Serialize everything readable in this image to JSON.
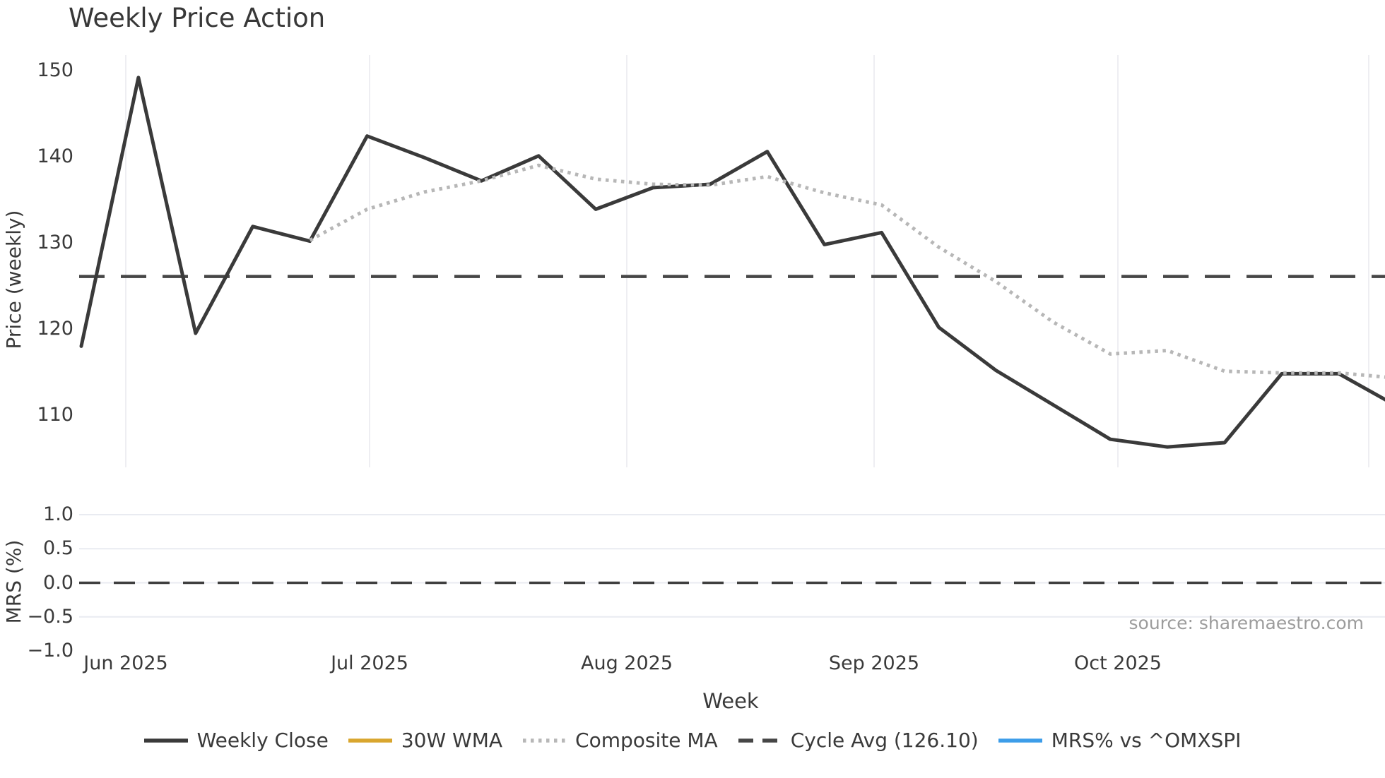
{
  "title": "Weekly Price Action",
  "xlabel": "Week",
  "source": "source: sharemaestro.com",
  "main_chart": {
    "ylabel": "Price (weekly)",
    "y_tick_labels": [
      "150",
      "140",
      "130",
      "120",
      "110"
    ]
  },
  "mrs_chart": {
    "ylabel": "MRS (%)",
    "y_tick_labels": [
      "1.0",
      "0.5",
      "0.0",
      "−0.5",
      "−1.0"
    ]
  },
  "x_tick_labels": [
    "Jun 2025",
    "Jul 2025",
    "Aug 2025",
    "Sep 2025",
    "Oct 2025"
  ],
  "legend": [
    {
      "label": "Weekly Close",
      "color": "#3a3a3a",
      "style": "solid"
    },
    {
      "label": "30W WMA",
      "color": "#d9a62e",
      "style": "solid"
    },
    {
      "label": "Composite MA",
      "color": "#b7b7b7",
      "style": "dotted"
    },
    {
      "label": "Cycle Avg (126.10)",
      "color": "#464646",
      "style": "dashed"
    },
    {
      "label": "MRS% vs ^OMXSPI",
      "color": "#3d9de9",
      "style": "solid"
    }
  ],
  "colors": {
    "weekly_close": "#3a3a3a",
    "composite_ma": "#b7b7b7",
    "cycle_avg": "#464646",
    "wma_30w": "#d9a62e",
    "mrs_line": "#3d9de9",
    "gridline": "#e9e9ee",
    "gridline_bottom": "#e9ebf1",
    "zero_dash": "#3f3f3f"
  },
  "chart_data": [
    {
      "type": "line",
      "title": "Weekly Price Action",
      "xlabel": "Week",
      "ylabel": "Price (weekly)",
      "x_tick_labels": [
        "Jun 2025",
        "Jul 2025",
        "Aug 2025",
        "Sep 2025",
        "Oct 2025"
      ],
      "y_ticks": [
        150,
        140,
        130,
        120,
        110
      ],
      "x_unit": "weekly points, May 26 2025 through Nov 3 2025, rightmost point clipped at image edge",
      "grid": "vertical month gridlines only",
      "legend_position": "bottom center",
      "series": [
        {
          "name": "Weekly Close",
          "style": "solid",
          "color": "#3a3a3a",
          "start_week_index": 0,
          "values": [
            118.0,
            149.2,
            119.5,
            131.9,
            130.2,
            142.4,
            139.9,
            137.2,
            140.1,
            133.9,
            136.4,
            136.8,
            140.6,
            129.8,
            131.2,
            120.2,
            115.2,
            111.2,
            107.2,
            106.3,
            106.8,
            114.8,
            114.8,
            111.1
          ]
        },
        {
          "name": "Composite MA",
          "style": "dotted",
          "color": "#b7b7b7",
          "start_week_index": 4,
          "values": [
            130.3,
            133.9,
            135.9,
            137.2,
            139.0,
            137.4,
            136.8,
            136.7,
            137.7,
            135.8,
            134.4,
            129.5,
            125.5,
            120.8,
            117.1,
            117.5,
            115.1,
            114.9,
            114.9,
            114.3
          ]
        },
        {
          "name": "30W WMA",
          "style": "solid",
          "color": "#d9a62e",
          "start_week_index": 0,
          "values": []
        }
      ],
      "reference_lines": [
        {
          "name": "Cycle Avg",
          "value": 126.1,
          "style": "dashed",
          "color": "#464646"
        }
      ]
    },
    {
      "type": "line",
      "ylabel": "MRS (%)",
      "y_ticks": [
        1.0,
        0.5,
        0.0,
        -0.5,
        -1.0
      ],
      "ylim": [
        -1.0,
        1.0
      ],
      "grid": "horizontal gridlines at 1.0, 0.5, 0.0, -0.5",
      "series": [
        {
          "name": "MRS% vs ^OMXSPI",
          "style": "solid",
          "color": "#3d9de9",
          "values": []
        }
      ],
      "reference_lines": [
        {
          "name": "zero",
          "value": 0.0,
          "style": "dashed",
          "color": "#3f3f3f"
        }
      ]
    }
  ]
}
